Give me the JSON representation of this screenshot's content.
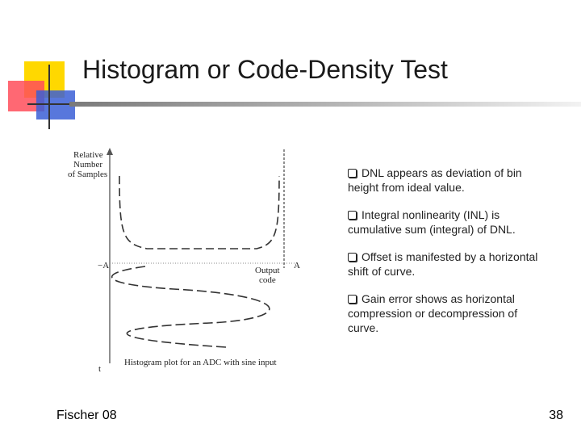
{
  "slide": {
    "title": "Histogram or Code-Density Test",
    "figure": {
      "y_label_line1": "Relative",
      "y_label_line2": "Number",
      "y_label_line3": "of Samples",
      "x_label_line1": "Output",
      "x_label_line2": "code",
      "left_marker": "−A",
      "right_marker": "A",
      "time_label": "t",
      "caption": "Histogram plot for an ADC with sine input"
    },
    "bullets": [
      "DNL appears as deviation of bin height from ideal value.",
      "Integral nonlinearity (INL) is cumulative sum (integral) of DNL.",
      "Offset is manifested by a horizontal shift of curve.",
      "Gain error shows as horizontal compression or decompression of curve."
    ],
    "footer_left": "Fischer 08",
    "page_number": "38"
  },
  "colors": {
    "logo_yellow": "#ffd800",
    "logo_red": "#ff4d5a",
    "logo_blue": "#3b5fd6",
    "title_text": "#1a1a1a"
  },
  "icons": {
    "bullet": "checkbox-square-icon"
  }
}
